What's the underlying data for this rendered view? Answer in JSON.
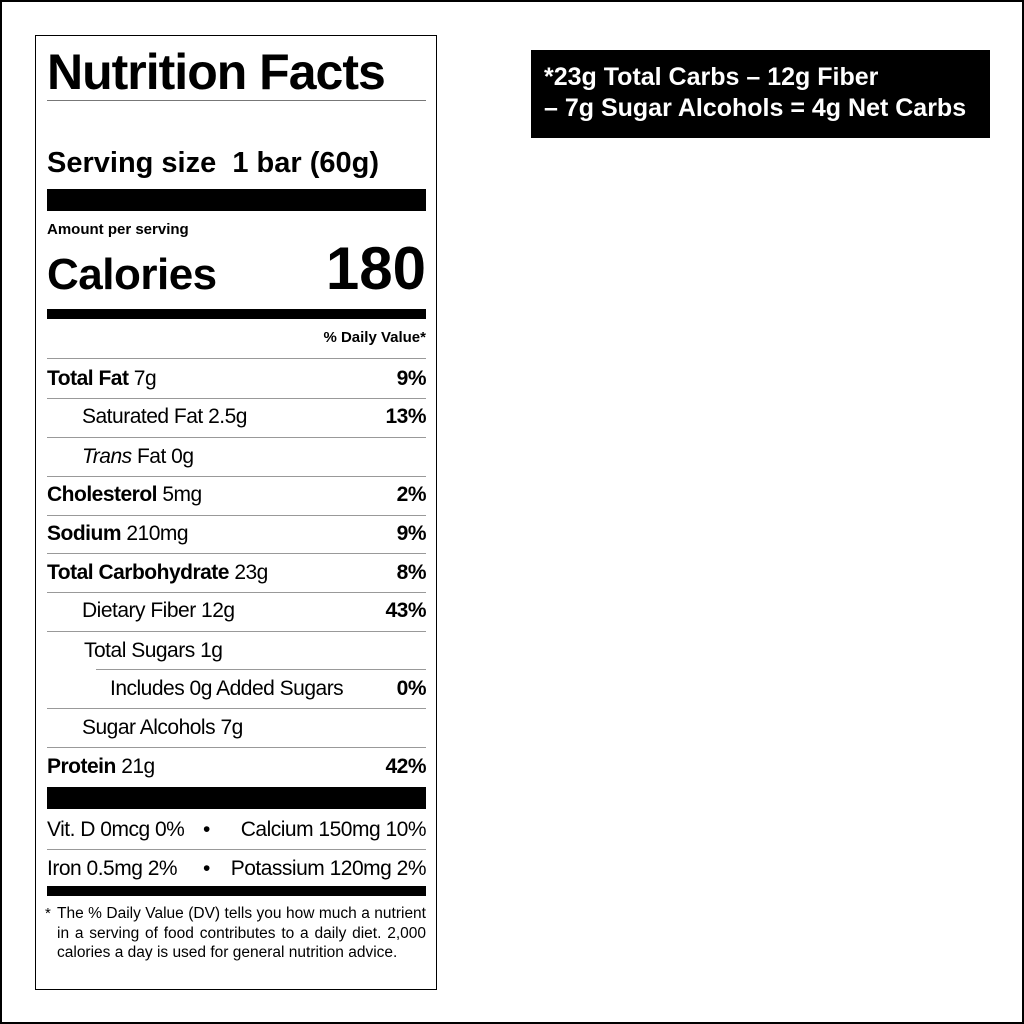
{
  "label": {
    "title": "Nutrition Facts",
    "serving_size_label": "Serving size",
    "serving_size_value": "1 bar (60g)",
    "amount_per_serving": "Amount per serving",
    "calories_label": "Calories",
    "calories_value": "180",
    "dv_header": "% Daily Value*",
    "nutrients": [
      {
        "name": "Total Fat",
        "amount": "7g",
        "dv": "9%"
      },
      {
        "name": "Saturated Fat",
        "amount": "2.5g",
        "dv": "13%"
      },
      {
        "name": "Trans",
        "name2": "Fat",
        "amount": "0g"
      },
      {
        "name": "Cholesterol",
        "amount": "5mg",
        "dv": "2%"
      },
      {
        "name": "Sodium",
        "amount": "210mg",
        "dv": "9%"
      },
      {
        "name": "Total Carbohydrate",
        "amount": "23g",
        "dv": "8%"
      },
      {
        "name": "Dietary Fiber",
        "amount": "12g",
        "dv": "43%"
      },
      {
        "name": "Total Sugars",
        "amount": "1g"
      },
      {
        "name": "Includes 0g Added Sugars",
        "dv": "0%"
      },
      {
        "name": "Sugar Alcohols",
        "amount": "7g"
      },
      {
        "name": "Protein",
        "amount": "21g",
        "dv": "42%"
      }
    ],
    "vitamins": {
      "vit_d": "Vit. D 0mcg 0%",
      "calcium": "Calcium 150mg 10%",
      "iron": "Iron 0.5mg 2%",
      "potassium": "Potassium 120mg 2%",
      "separator": "•"
    },
    "footnote_star": "*",
    "footnote": "The % Daily Value (DV) tells you how much a nutrient in a serving of food contributes to a daily diet. 2,000 calories a day is used for general nutrition advice."
  },
  "net_carbs": {
    "line1": "*23g Total Carbs – 12g Fiber",
    "line2": "– 7g Sugar Alcohols = 4g Net Carbs"
  }
}
